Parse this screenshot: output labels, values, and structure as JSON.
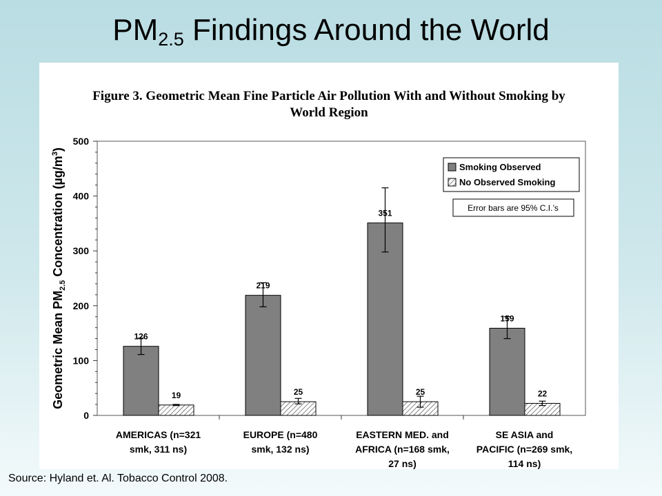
{
  "slide": {
    "title_main": "PM",
    "title_sub": "2.5",
    "title_rest": " Findings Around the World",
    "source": "Source:  Hyland et. Al.  Tobacco Control 2008."
  },
  "figure": {
    "title_line1": "Figure 3. Geometric Mean Fine Particle Air Pollution With and Without Smoking by",
    "title_line2": "World Region"
  },
  "chart_data": {
    "type": "bar",
    "ylabel_pre": "Geometric Mean PM",
    "ylabel_sub": "2.5",
    "ylabel_post": " Concentration (µg/m",
    "ylabel_sup": "3",
    "ylabel_end": ")",
    "ylim": [
      0,
      500
    ],
    "yticks": [
      0,
      100,
      200,
      300,
      400,
      500
    ],
    "categories": [
      [
        "AMERICAS (n=321",
        "smk, 311 ns)"
      ],
      [
        "EUROPE (n=480",
        "smk, 132 ns)"
      ],
      [
        "EASTERN MED. and",
        "AFRICA (n=168 smk,",
        "27 ns)"
      ],
      [
        "SE ASIA and",
        "PACIFIC (n=269 smk,",
        "114 ns)"
      ]
    ],
    "series": [
      {
        "name": "Smoking Observed",
        "color": "#808080",
        "values": [
          126,
          219,
          351,
          159
        ],
        "err_low": [
          111,
          198,
          298,
          140
        ],
        "err_high": [
          141,
          242,
          415,
          180
        ]
      },
      {
        "name": "No Observed Smoking",
        "color": "hatched",
        "values": [
          19,
          25,
          25,
          22
        ],
        "err_low": [
          18,
          21,
          15,
          18
        ],
        "err_high": [
          20,
          31,
          35,
          26
        ]
      }
    ],
    "legend_position": "top-right",
    "note": "Error bars are 95% C.I.’s",
    "grid": false
  }
}
